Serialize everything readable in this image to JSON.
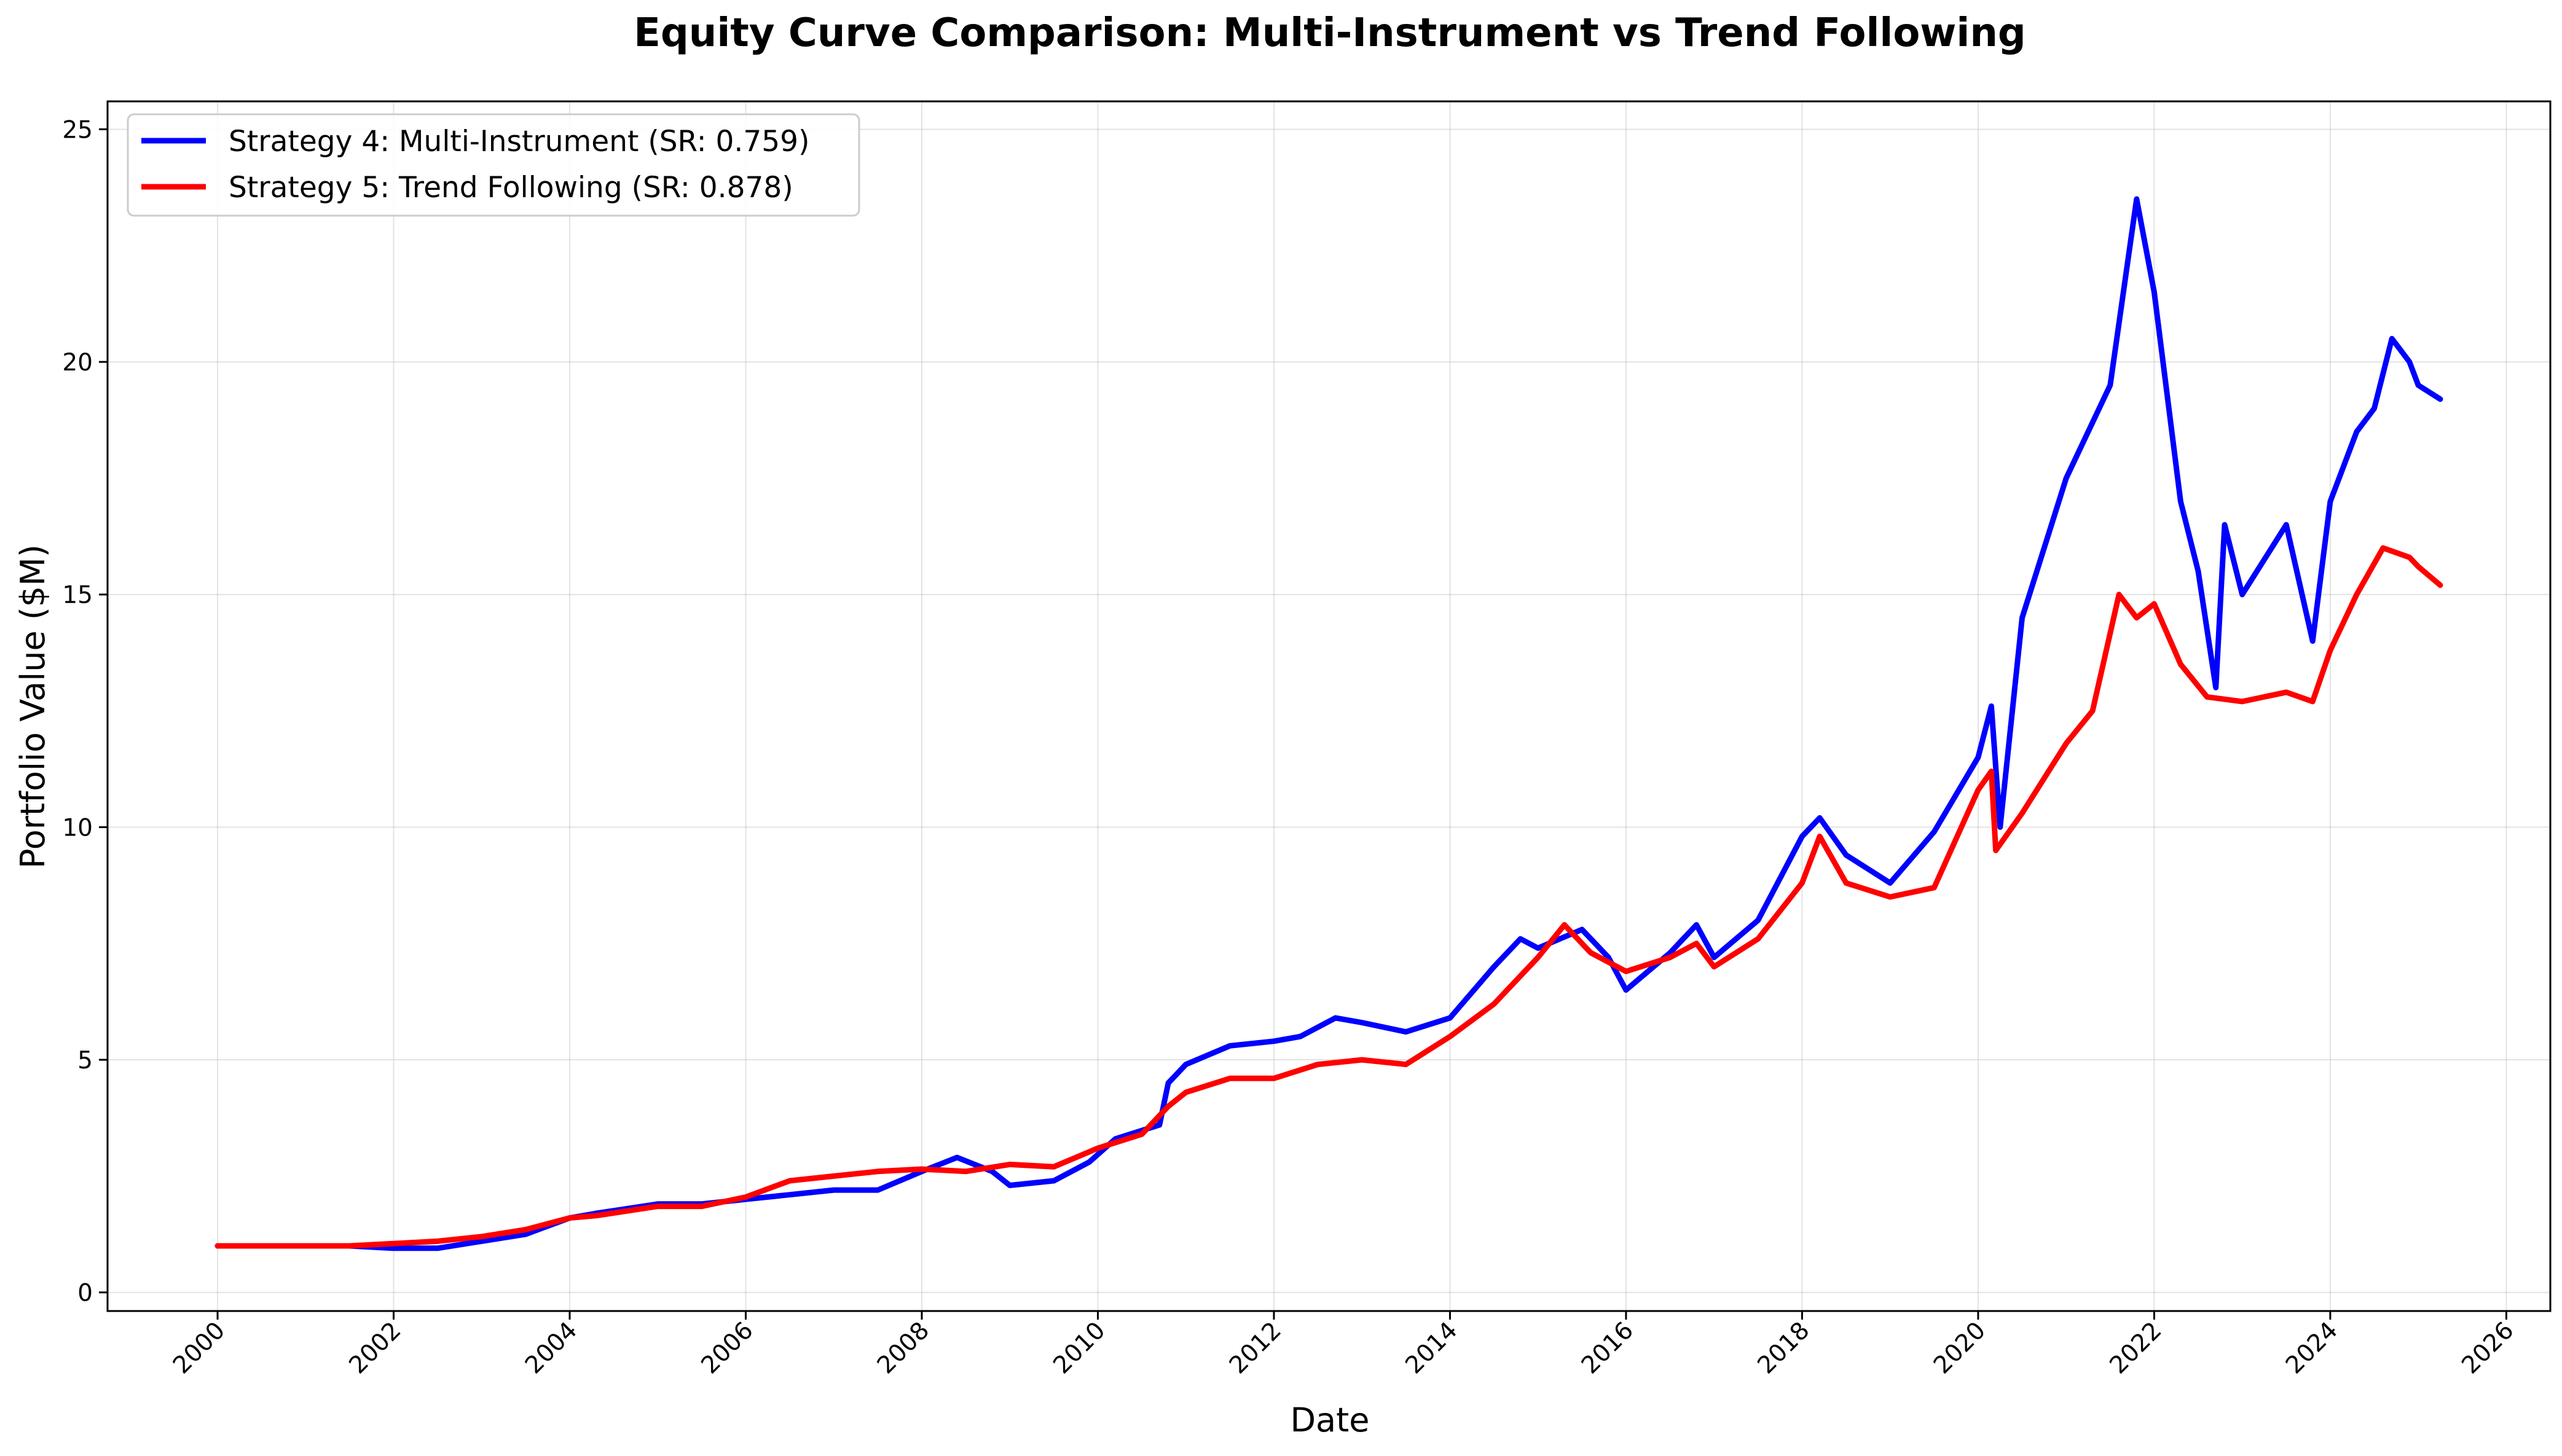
{
  "chart_data": {
    "type": "line",
    "title": "Equity Curve Comparison: Multi-Instrument vs Trend Following",
    "xlabel": "Date",
    "ylabel": "Portfolio Value ($M)",
    "xlim": [
      1998.75,
      2026.5
    ],
    "ylim": [
      -0.4,
      25.6
    ],
    "x_ticks": [
      2000,
      2002,
      2004,
      2006,
      2008,
      2010,
      2012,
      2014,
      2016,
      2018,
      2020,
      2022,
      2024,
      2026
    ],
    "x_tick_labels": [
      "2000",
      "2002",
      "2004",
      "2006",
      "2008",
      "2010",
      "2012",
      "2014",
      "2016",
      "2018",
      "2020",
      "2022",
      "2024",
      "2026"
    ],
    "y_ticks": [
      0,
      5,
      10,
      15,
      20,
      25
    ],
    "y_tick_labels": [
      "0",
      "5",
      "10",
      "15",
      "20",
      "25"
    ],
    "grid": true,
    "legend_position": "top-left",
    "series": [
      {
        "name": "Strategy 4: Multi-Instrument (SR: 0.759)",
        "color": "#0000ff",
        "x": [
          2000.0,
          2001.0,
          2001.5,
          2002.0,
          2002.5,
          2003.0,
          2003.5,
          2004.0,
          2004.3,
          2005.0,
          2005.5,
          2006.0,
          2006.5,
          2007.0,
          2007.5,
          2008.0,
          2008.4,
          2008.8,
          2009.0,
          2009.5,
          2009.9,
          2010.2,
          2010.7,
          2010.8,
          2011.0,
          2011.5,
          2012.0,
          2012.3,
          2012.7,
          2013.0,
          2013.5,
          2014.0,
          2014.5,
          2014.8,
          2015.0,
          2015.5,
          2015.8,
          2016.0,
          2016.5,
          2016.8,
          2017.0,
          2017.5,
          2018.0,
          2018.2,
          2018.5,
          2019.0,
          2019.5,
          2020.0,
          2020.15,
          2020.25,
          2020.5,
          2021.0,
          2021.5,
          2021.8,
          2022.0,
          2022.3,
          2022.5,
          2022.7,
          2022.8,
          2023.0,
          2023.5,
          2023.8,
          2024.0,
          2024.3,
          2024.5,
          2024.7,
          2024.9,
          2025.0,
          2025.25
        ],
        "y": [
          1.0,
          1.0,
          1.0,
          0.95,
          0.95,
          1.1,
          1.25,
          1.6,
          1.7,
          1.9,
          1.9,
          2.0,
          2.1,
          2.2,
          2.2,
          2.6,
          2.9,
          2.6,
          2.3,
          2.4,
          2.8,
          3.3,
          3.6,
          4.5,
          4.9,
          5.3,
          5.4,
          5.5,
          5.9,
          5.8,
          5.6,
          5.9,
          7.0,
          7.6,
          7.4,
          7.8,
          7.2,
          6.5,
          7.3,
          7.9,
          7.2,
          8.0,
          9.8,
          10.2,
          9.4,
          8.8,
          9.9,
          11.5,
          12.6,
          10.0,
          14.5,
          17.5,
          19.5,
          23.5,
          21.5,
          17.0,
          15.5,
          13.0,
          16.5,
          15.0,
          16.5,
          14.0,
          17.0,
          18.5,
          19.0,
          20.5,
          20.0,
          19.5,
          19.2
        ]
      },
      {
        "name": "Strategy 5: Trend Following (SR: 0.878)",
        "color": "#ff0000",
        "x": [
          2000.0,
          2001.0,
          2001.5,
          2002.0,
          2002.5,
          2003.0,
          2003.5,
          2004.0,
          2004.3,
          2005.0,
          2005.5,
          2006.0,
          2006.5,
          2007.0,
          2007.5,
          2008.0,
          2008.5,
          2009.0,
          2009.5,
          2010.0,
          2010.5,
          2010.8,
          2011.0,
          2011.5,
          2012.0,
          2012.5,
          2013.0,
          2013.5,
          2014.0,
          2014.5,
          2015.0,
          2015.3,
          2015.6,
          2016.0,
          2016.5,
          2016.8,
          2017.0,
          2017.5,
          2018.0,
          2018.2,
          2018.5,
          2019.0,
          2019.5,
          2020.0,
          2020.15,
          2020.2,
          2020.5,
          2021.0,
          2021.3,
          2021.6,
          2021.8,
          2022.0,
          2022.3,
          2022.6,
          2023.0,
          2023.5,
          2023.8,
          2024.0,
          2024.3,
          2024.6,
          2024.9,
          2025.0,
          2025.25
        ],
        "y": [
          1.0,
          1.0,
          1.0,
          1.05,
          1.1,
          1.2,
          1.35,
          1.6,
          1.65,
          1.85,
          1.85,
          2.05,
          2.4,
          2.5,
          2.6,
          2.65,
          2.6,
          2.75,
          2.7,
          3.1,
          3.4,
          4.0,
          4.3,
          4.6,
          4.6,
          4.9,
          5.0,
          4.9,
          5.5,
          6.2,
          7.2,
          7.9,
          7.3,
          6.9,
          7.2,
          7.5,
          7.0,
          7.6,
          8.8,
          9.8,
          8.8,
          8.5,
          8.7,
          10.8,
          11.2,
          9.5,
          10.3,
          11.8,
          12.5,
          15.0,
          14.5,
          14.8,
          13.5,
          12.8,
          12.7,
          12.9,
          12.7,
          13.8,
          15.0,
          16.0,
          15.8,
          15.6,
          15.2
        ]
      }
    ]
  }
}
